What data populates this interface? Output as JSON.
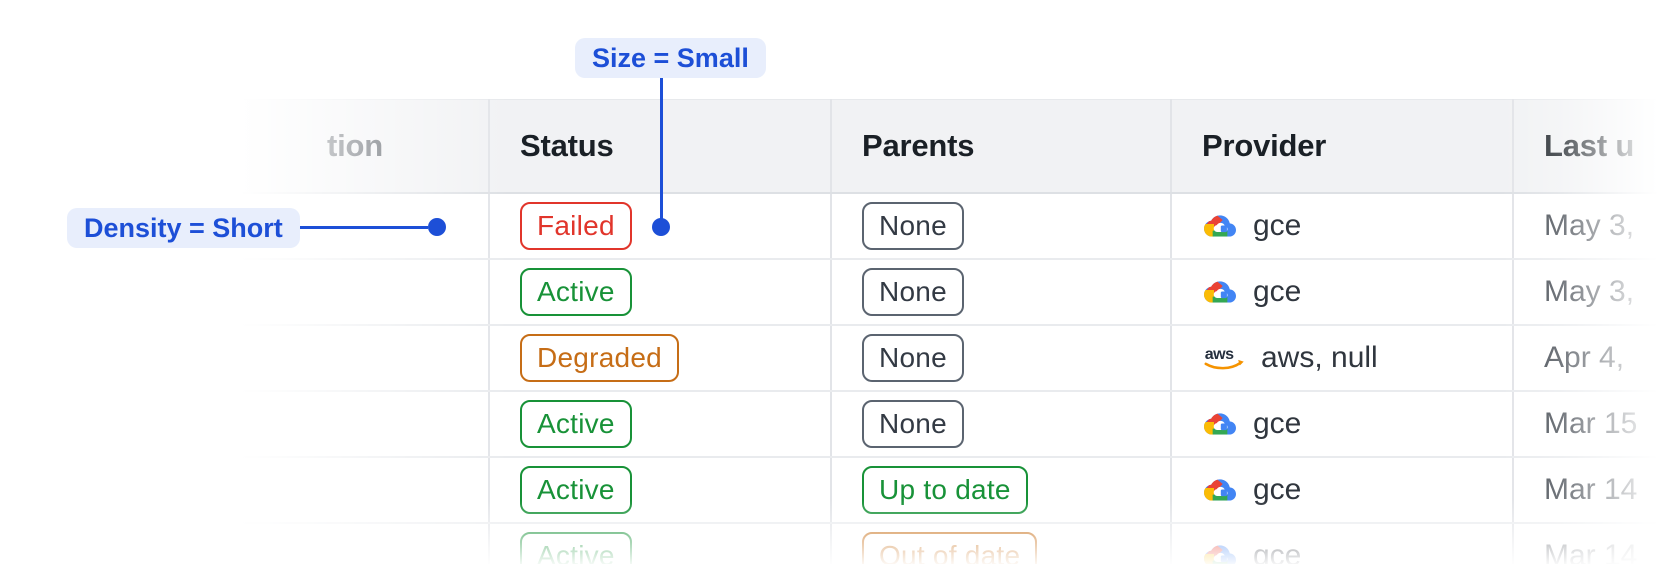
{
  "annotations": {
    "size_callout": {
      "label": "Size = Small"
    },
    "density_callout": {
      "label": "Density = Short"
    }
  },
  "table": {
    "columns": [
      {
        "label": "tion"
      },
      {
        "label": "Status"
      },
      {
        "label": "Parents"
      },
      {
        "label": "Provider"
      },
      {
        "label": "Last u"
      }
    ],
    "rows": [
      {
        "status": "Failed",
        "status_color": "red",
        "parents": "None",
        "parents_color": "neutral",
        "provider": "gce",
        "provider_icon": "gcp-icon",
        "last_updated": "May 3,"
      },
      {
        "status": "Active",
        "status_color": "green",
        "parents": "None",
        "parents_color": "neutral",
        "provider": "gce",
        "provider_icon": "gcp-icon",
        "last_updated": "May 3,"
      },
      {
        "status": "Degraded",
        "status_color": "orange",
        "parents": "None",
        "parents_color": "neutral",
        "provider": "aws, null",
        "provider_icon": "aws-icon",
        "last_updated": "Apr 4,"
      },
      {
        "status": "Active",
        "status_color": "green",
        "parents": "None",
        "parents_color": "neutral",
        "provider": "gce",
        "provider_icon": "gcp-icon",
        "last_updated": "Mar 15"
      },
      {
        "status": "Active",
        "status_color": "green",
        "parents": "Up to date",
        "parents_color": "green",
        "provider": "gce",
        "provider_icon": "gcp-icon",
        "last_updated": "Mar 14"
      },
      {
        "status": "Active",
        "status_color": "green",
        "parents": "Out of date",
        "parents_color": "orange",
        "provider": "gce",
        "provider_icon": "gcp-icon",
        "last_updated": "Mar 14"
      }
    ]
  },
  "colors": {
    "accent_blue": "#1d4fd7",
    "callout_bg": "#e8eefc",
    "badge_red": "#e1352b",
    "badge_green": "#189238",
    "badge_orange": "#c66d16",
    "badge_neutral_border": "#5b6470",
    "header_bg": "#f1f2f4"
  }
}
